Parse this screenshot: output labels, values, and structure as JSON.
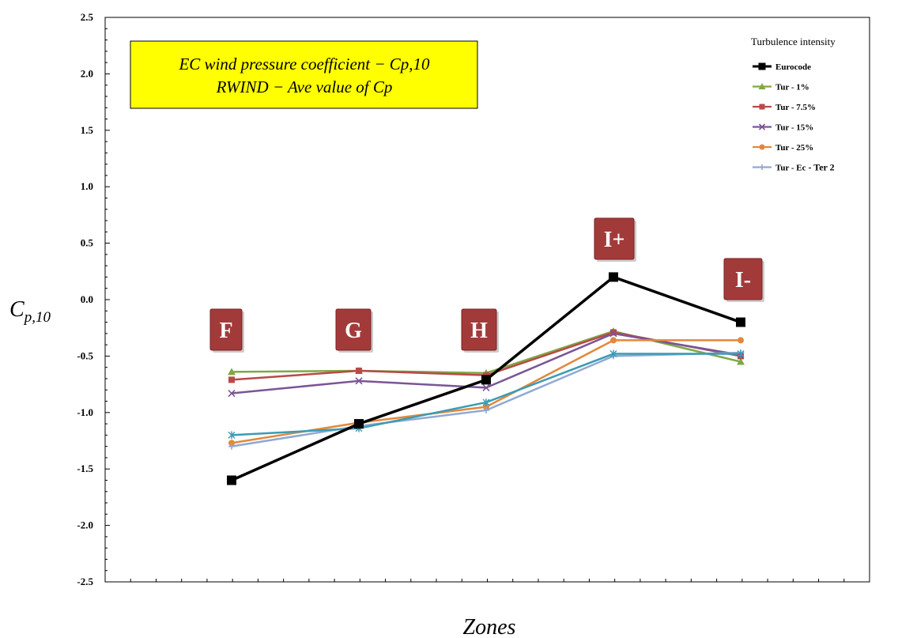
{
  "chart_data": {
    "type": "line",
    "categories": [
      "F",
      "G",
      "H",
      "I+",
      "I-"
    ],
    "ylabel": "C",
    "ylabel_sub": "p,10",
    "xlabel": "Zones",
    "ylim": [
      -2.5,
      2.5
    ],
    "yticks": [
      2.5,
      2.0,
      1.5,
      1.0,
      0.5,
      0.0,
      -0.5,
      -1.0,
      -1.5,
      -2.0,
      -2.5
    ],
    "ytick_labels": [
      "2.5",
      "2.0",
      "1.5",
      "1.0",
      "0.5",
      "0.0",
      "-0.5",
      "-1.0",
      "-1.5",
      "-2.0",
      "-2.5"
    ],
    "grid": false,
    "legend": {
      "title": "Turbulence intensity",
      "position": "top-right"
    },
    "annotation_box": {
      "line1": "EC wind pressure coefficient − Cp,10",
      "line2": "RWIND  − Ave value of Cp",
      "background": "#ffff00"
    },
    "zone_label_color": "#a33a3a",
    "series": [
      {
        "name": "Eurocode",
        "suffix": "",
        "color": "#000000",
        "marker": "square",
        "values": [
          -1.6,
          -1.1,
          -0.71,
          0.2,
          -0.2
        ]
      },
      {
        "name": "Tur - 1%",
        "suffix": "",
        "color": "#7fa845",
        "marker": "triangle",
        "values": [
          -0.64,
          -0.63,
          -0.65,
          -0.28,
          -0.55
        ]
      },
      {
        "name": "Tur - 7.5%",
        "suffix": "",
        "color": "#b94a48",
        "marker": "square",
        "values": [
          -0.71,
          -0.63,
          -0.67,
          -0.29,
          -0.5
        ]
      },
      {
        "name": "Tur - 15%",
        "suffix": "",
        "color": "#7a5596",
        "marker": "x",
        "values": [
          -0.83,
          -0.72,
          -0.78,
          -0.3,
          -0.49
        ]
      },
      {
        "name": "Tur - 25%",
        "suffix": "",
        "color": "#e3883a",
        "marker": "circle",
        "values": [
          -1.27,
          -1.09,
          -0.95,
          -0.36,
          -0.36
        ]
      },
      {
        "name": "Tur - Ec",
        "suffix": " - Ter 2",
        "color": "#90a8d3",
        "marker": "plus",
        "values": [
          -1.3,
          -1.12,
          -0.98,
          -0.5,
          -0.47
        ]
      },
      {
        "name": "",
        "suffix": "",
        "color": "#3b9bb5",
        "marker": "star",
        "values": [
          -1.2,
          -1.14,
          -0.91,
          -0.48,
          -0.48
        ]
      }
    ]
  }
}
